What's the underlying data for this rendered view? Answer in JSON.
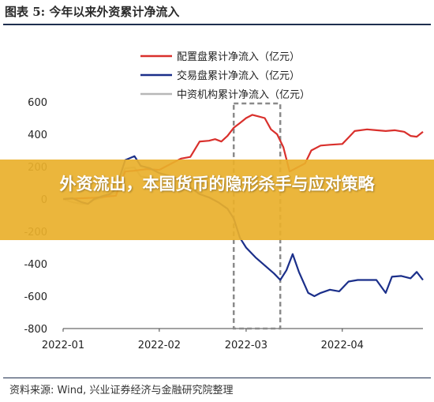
{
  "figure": {
    "title": "图表 5:  今年以来外资累计净流入",
    "source": "资料来源: Wind, 兴业证券经济与金融研究院整理"
  },
  "banner": {
    "text": "外资流出，本国货币的隐形杀手与应对策略",
    "color": "#e9b02b"
  },
  "chart_data": {
    "type": "line",
    "ylim": [
      -800,
      600
    ],
    "yticks": [
      "600",
      "400",
      "200",
      "0",
      "-200",
      "-400",
      "-600",
      "-800"
    ],
    "ytick_values": [
      600,
      400,
      200,
      0,
      -200,
      -400,
      -600,
      -800
    ],
    "xticks": [
      "2022-01",
      "2022-02",
      "2022-03",
      "2022-04"
    ],
    "xtick_dates": [
      "2022-01-04",
      "2022-02-04",
      "2022-03-04",
      "2022-04-04"
    ],
    "xlim": [
      "2022-01-04",
      "2022-04-30"
    ],
    "highlight_box": {
      "x_range": [
        "2022-02-28",
        "2022-03-15"
      ],
      "y_range": [
        590,
        -800
      ]
    },
    "legend_position": "top-right",
    "series": [
      {
        "name": "配置盘累计净流入（亿元）",
        "color": "#d9302c",
        "points": [
          [
            "2022-01-04",
            0
          ],
          [
            "2022-01-10",
            5
          ],
          [
            "2022-01-14",
            8
          ],
          [
            "2022-01-18",
            15
          ],
          [
            "2022-01-21",
            20
          ],
          [
            "2022-01-24",
            170
          ],
          [
            "2022-01-27",
            175
          ],
          [
            "2022-01-31",
            185
          ],
          [
            "2022-02-04",
            180
          ],
          [
            "2022-02-08",
            220
          ],
          [
            "2022-02-11",
            250
          ],
          [
            "2022-02-14",
            260
          ],
          [
            "2022-02-17",
            355
          ],
          [
            "2022-02-20",
            360
          ],
          [
            "2022-02-22",
            370
          ],
          [
            "2022-02-24",
            355
          ],
          [
            "2022-02-26",
            390
          ],
          [
            "2022-02-28",
            440
          ],
          [
            "2022-03-02",
            470
          ],
          [
            "2022-03-04",
            500
          ],
          [
            "2022-03-06",
            520
          ],
          [
            "2022-03-08",
            510
          ],
          [
            "2022-03-10",
            500
          ],
          [
            "2022-03-12",
            430
          ],
          [
            "2022-03-14",
            400
          ],
          [
            "2022-03-16",
            320
          ],
          [
            "2022-03-18",
            170
          ],
          [
            "2022-03-21",
            200
          ],
          [
            "2022-03-23",
            220
          ],
          [
            "2022-03-25",
            300
          ],
          [
            "2022-03-28",
            330
          ],
          [
            "2022-03-31",
            335
          ],
          [
            "2022-04-04",
            340
          ],
          [
            "2022-04-06",
            380
          ],
          [
            "2022-04-08",
            420
          ],
          [
            "2022-04-12",
            430
          ],
          [
            "2022-04-15",
            425
          ],
          [
            "2022-04-18",
            420
          ],
          [
            "2022-04-21",
            425
          ],
          [
            "2022-04-24",
            415
          ],
          [
            "2022-04-26",
            390
          ],
          [
            "2022-04-28",
            385
          ],
          [
            "2022-04-30",
            415
          ]
        ]
      },
      {
        "name": "交易盘累计净流入（亿元）",
        "color": "#1b2f8a",
        "points": [
          [
            "2022-01-04",
            0
          ],
          [
            "2022-01-07",
            5
          ],
          [
            "2022-01-10",
            -20
          ],
          [
            "2022-01-12",
            -30
          ],
          [
            "2022-01-14",
            0
          ],
          [
            "2022-01-17",
            20
          ],
          [
            "2022-01-19",
            30
          ],
          [
            "2022-01-21",
            60
          ],
          [
            "2022-01-24",
            240
          ],
          [
            "2022-01-27",
            265
          ],
          [
            "2022-01-29",
            205
          ],
          [
            "2022-02-01",
            190
          ],
          [
            "2022-02-04",
            160
          ],
          [
            "2022-02-08",
            140
          ],
          [
            "2022-02-11",
            110
          ],
          [
            "2022-02-14",
            70
          ],
          [
            "2022-02-17",
            30
          ],
          [
            "2022-02-20",
            10
          ],
          [
            "2022-02-23",
            -20
          ],
          [
            "2022-02-26",
            -60
          ],
          [
            "2022-02-28",
            -120
          ],
          [
            "2022-03-02",
            -240
          ],
          [
            "2022-03-04",
            -300
          ],
          [
            "2022-03-07",
            -360
          ],
          [
            "2022-03-10",
            -410
          ],
          [
            "2022-03-13",
            -460
          ],
          [
            "2022-03-15",
            -500
          ],
          [
            "2022-03-17",
            -440
          ],
          [
            "2022-03-19",
            -340
          ],
          [
            "2022-03-21",
            -450
          ],
          [
            "2022-03-24",
            -580
          ],
          [
            "2022-03-26",
            -600
          ],
          [
            "2022-03-28",
            -580
          ],
          [
            "2022-03-31",
            -560
          ],
          [
            "2022-04-03",
            -570
          ],
          [
            "2022-04-06",
            -510
          ],
          [
            "2022-04-09",
            -500
          ],
          [
            "2022-04-12",
            -500
          ],
          [
            "2022-04-15",
            -500
          ],
          [
            "2022-04-18",
            -580
          ],
          [
            "2022-04-20",
            -480
          ],
          [
            "2022-04-23",
            -475
          ],
          [
            "2022-04-26",
            -490
          ],
          [
            "2022-04-28",
            -450
          ],
          [
            "2022-04-30",
            -500
          ]
        ]
      },
      {
        "name": "中资机构累计净流入（亿元）",
        "color": "#b7b7b7",
        "points": [
          [
            "2022-01-04",
            0
          ],
          [
            "2022-01-07",
            -20
          ],
          [
            "2022-01-10",
            -30
          ],
          [
            "2022-01-12",
            -30
          ],
          [
            "2022-01-14",
            -5
          ],
          [
            "2022-01-17",
            10
          ],
          [
            "2022-01-19",
            25
          ],
          [
            "2022-01-21",
            40
          ],
          [
            "2022-01-24",
            190
          ],
          [
            "2022-01-27",
            195
          ],
          [
            "2022-01-29",
            140
          ],
          [
            "2022-02-01",
            130
          ]
        ]
      }
    ]
  }
}
